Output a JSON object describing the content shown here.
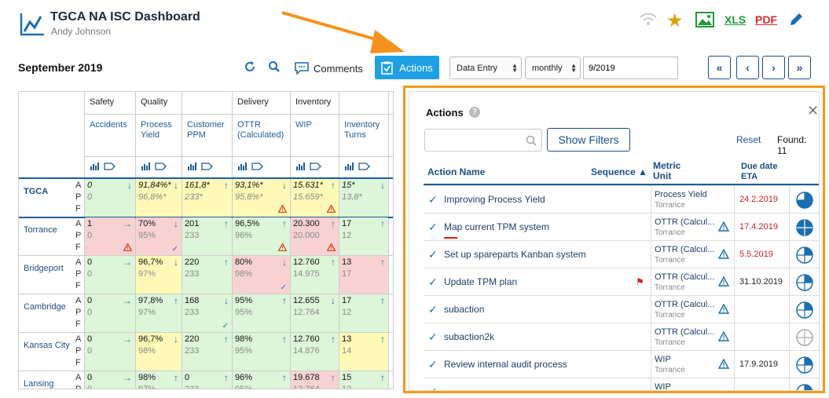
{
  "app": {
    "title": "TGCA NA ISC Dashboard",
    "user": "Andy Johnson"
  },
  "header_icons": [
    "wifi-icon",
    "star-icon",
    "image-icon"
  ],
  "export": {
    "xls": "XLS",
    "pdf": "PDF"
  },
  "period": "September 2019",
  "toolbar": {
    "comments": "Comments",
    "actions": "Actions",
    "mode": "Data Entry",
    "frequency": "monthly",
    "date": "9/2019"
  },
  "nav": [
    "«",
    "‹",
    "›",
    "»"
  ],
  "grid": {
    "groups": [
      "Safety",
      "Quality",
      "Delivery",
      "Inventory",
      "C"
    ],
    "metrics": [
      "Accidents",
      "Process\nYield",
      "Customer\nPPM",
      "OTTR\n(Calculated)",
      "WIP",
      "Inventory\nTurns",
      "T\nI"
    ],
    "apf": [
      "A",
      "P",
      "F"
    ],
    "rows": [
      {
        "plant": "TGCA",
        "cells": [
          {
            "a": "0",
            "p": "0",
            "tr": "↓",
            "bg": "green"
          },
          {
            "a": "91,84%*",
            "p": "96,8%*",
            "tr": "↓",
            "bg": "yellow"
          },
          {
            "a": "161,8*",
            "p": "233*",
            "tr": "↑",
            "bg": "yellow"
          },
          {
            "a": "93,1%*",
            "p": "95,8%*",
            "tr": "↓",
            "bg": "yellow",
            "mk": "warn"
          },
          {
            "a": "15.631*",
            "p": "15.659*",
            "tr": "↑",
            "bg": "yellow",
            "mk": "warn"
          },
          {
            "a": "15*",
            "p": "13,8*",
            "tr": "↓",
            "bg": "green"
          }
        ]
      },
      {
        "plant": "Torrance",
        "cells": [
          {
            "a": "1",
            "p": "0",
            "tr": "→",
            "bg": "red",
            "mk": "warn"
          },
          {
            "a": "70%",
            "p": "95%",
            "tr": "↓",
            "bg": "red",
            "mk": "check"
          },
          {
            "a": "201",
            "p": "233",
            "tr": "↑",
            "bg": "green"
          },
          {
            "a": "96,5%",
            "p": "96%",
            "tr": "↑",
            "bg": "green",
            "mk": "warn"
          },
          {
            "a": "20.300",
            "p": "20.000",
            "tr": "↑",
            "bg": "red",
            "mk": "warn"
          },
          {
            "a": "17",
            "p": "12",
            "tr": "↑",
            "bg": "green"
          }
        ]
      },
      {
        "plant": "Bridgeport",
        "cells": [
          {
            "a": "0",
            "p": "0",
            "tr": "→",
            "bg": "green"
          },
          {
            "a": "96,7%",
            "p": "97%",
            "tr": "↓",
            "bg": "yellow"
          },
          {
            "a": "220",
            "p": "233",
            "tr": "↑",
            "bg": "green"
          },
          {
            "a": "80%",
            "p": "98%",
            "tr": "↓",
            "bg": "red",
            "mk": "check"
          },
          {
            "a": "12.760",
            "p": "14.975",
            "tr": "↑",
            "bg": "green"
          },
          {
            "a": "13",
            "p": "17",
            "tr": "↑",
            "bg": "red"
          }
        ]
      },
      {
        "plant": "Cambridge",
        "cells": [
          {
            "a": "0",
            "p": "0",
            "tr": "→",
            "bg": "green"
          },
          {
            "a": "97,8%",
            "p": "97%",
            "tr": "↑",
            "bg": "green"
          },
          {
            "a": "168",
            "p": "233",
            "tr": "↓",
            "bg": "green",
            "mk": "check"
          },
          {
            "a": "95%",
            "p": "95%",
            "tr": "↑",
            "bg": "green"
          },
          {
            "a": "12.655",
            "p": "12.764",
            "tr": "↓",
            "bg": "green"
          },
          {
            "a": "17",
            "p": "12",
            "tr": "↑",
            "bg": "green"
          }
        ]
      },
      {
        "plant": "Kansas City",
        "cells": [
          {
            "a": "0",
            "p": "0",
            "tr": "→",
            "bg": "green"
          },
          {
            "a": "96,7%",
            "p": "98%",
            "tr": "↓",
            "bg": "yellow"
          },
          {
            "a": "220",
            "p": "233",
            "tr": "↑",
            "bg": "green"
          },
          {
            "a": "98%",
            "p": "95%",
            "tr": "↑",
            "bg": "green"
          },
          {
            "a": "12.760",
            "p": "14.876",
            "tr": "↑",
            "bg": "green"
          },
          {
            "a": "13",
            "p": "14",
            "tr": "↑",
            "bg": "yellow"
          }
        ]
      },
      {
        "plant": "Lansing",
        "cells": [
          {
            "a": "0",
            "p": "0",
            "tr": "→",
            "bg": "green"
          },
          {
            "a": "98%",
            "p": "97%",
            "tr": "↑",
            "bg": "green"
          },
          {
            "a": "0",
            "p": "233",
            "tr": "↑",
            "bg": "green"
          },
          {
            "a": "96%",
            "p": "95%",
            "tr": "↑",
            "bg": "green"
          },
          {
            "a": "19.678",
            "p": "12.764",
            "tr": "↑",
            "bg": "red"
          },
          {
            "a": "15",
            "p": "12",
            "tr": "↑",
            "bg": "green"
          }
        ]
      }
    ]
  },
  "panel": {
    "title": "Actions",
    "show_filters": "Show Filters",
    "reset": "Reset",
    "found": "Found: 11",
    "columns": {
      "name": "Action Name",
      "sequence": "Sequence ▲",
      "metric_unit": "Metric\nUnit",
      "due": "Due date\nETA"
    },
    "rows": [
      {
        "name": "Improving Process Yield",
        "metric": "Process Yield",
        "unit": "Torrance",
        "warn": false,
        "due": "24.2.2019",
        "due_color": "red",
        "flag": false,
        "pie": 0.75
      },
      {
        "name": "Map current TPM system",
        "metric": "OTTR (Calcul...",
        "unit": "Torrance",
        "warn": true,
        "due": "17.4.2019",
        "due_color": "red",
        "flag": false,
        "pie": 1.0
      },
      {
        "name": "Set up spareparts Kanban system",
        "metric": "OTTR (Calcul...",
        "unit": "Torrance",
        "warn": true,
        "due": "5.5.2019",
        "due_color": "red",
        "flag": false,
        "pie": 0.25
      },
      {
        "name": "Update TPM plan",
        "metric": "OTTR (Calcul...",
        "unit": "Torrance",
        "warn": true,
        "due": "31.10.2019",
        "due_color": "black",
        "flag": true,
        "pie": 0.25
      },
      {
        "name": "subaction",
        "metric": "OTTR (Calcul...",
        "unit": "Torrance",
        "warn": true,
        "due": "",
        "due_color": "black",
        "flag": false,
        "pie": 0.25
      },
      {
        "name": "subaction2k",
        "metric": "OTTR (Calcul...",
        "unit": "Torrance",
        "warn": true,
        "due": "",
        "due_color": "black",
        "flag": false,
        "pie": 0.0
      },
      {
        "name": "Review internal audit process",
        "metric": "WIP",
        "unit": "Torrance",
        "warn": true,
        "due": "17.9.2019",
        "due_color": "black",
        "flag": false,
        "pie": 0.25
      },
      {
        "name": "",
        "metric": "WIP",
        "unit": "",
        "warn": false,
        "due": "",
        "due_color": "black",
        "flag": false,
        "pie": 0.25
      }
    ]
  }
}
